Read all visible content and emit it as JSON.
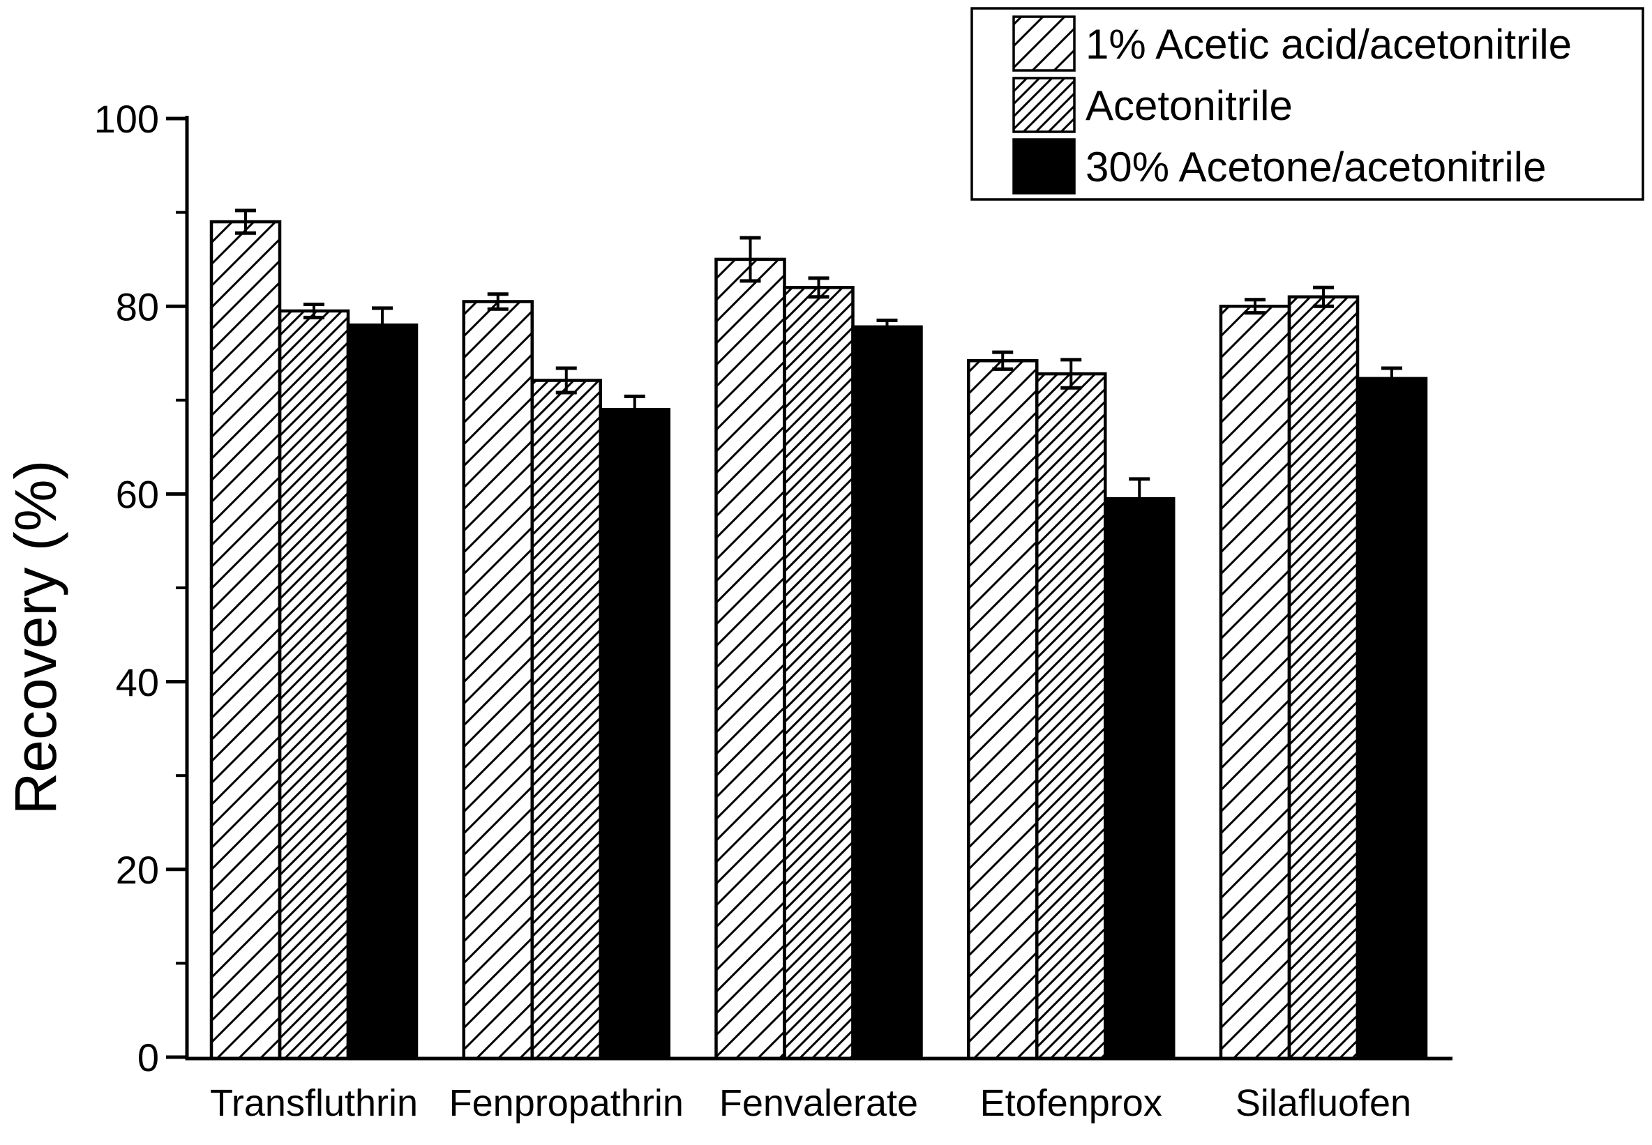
{
  "figure": {
    "background": "#ffffff",
    "foreground": "#000000"
  },
  "chart_data": {
    "type": "bar",
    "title": "",
    "xlabel": "",
    "ylabel": "Recovery (%)",
    "ylim": [
      0,
      100
    ],
    "yticks_major": [
      0,
      20,
      40,
      60,
      80,
      100
    ],
    "yticks_minor": [
      10,
      30,
      50,
      70,
      90
    ],
    "grid": false,
    "legend_position": "top-right",
    "categories": [
      "Transfluthrin",
      "Fenpropathrin",
      "Fenvalerate",
      "Etofenprox",
      "Silafluofen"
    ],
    "series": [
      {
        "name": "1% Acetic acid/acetonitrile",
        "pattern": "hatch-sparse",
        "values": [
          89.0,
          80.5,
          85.0,
          74.2,
          80.0
        ],
        "errors": [
          1.2,
          0.8,
          2.3,
          0.9,
          0.7
        ]
      },
      {
        "name": "Acetonitrile",
        "pattern": "hatch-dense",
        "values": [
          79.5,
          72.1,
          82.0,
          72.8,
          81.0
        ],
        "errors": [
          0.7,
          1.3,
          1.0,
          1.5,
          1.0
        ]
      },
      {
        "name": "30% Acetone/acetonitrile",
        "pattern": "solid-black",
        "values": [
          78.0,
          69.0,
          77.8,
          59.5,
          72.3
        ],
        "errors": [
          1.8,
          1.4,
          0.7,
          2.1,
          1.1
        ]
      }
    ],
    "colors": {
      "bar_outline": "#000000",
      "bar_fill_solid": "#000000",
      "hatch_line": "#000000",
      "background": "#ffffff"
    }
  }
}
